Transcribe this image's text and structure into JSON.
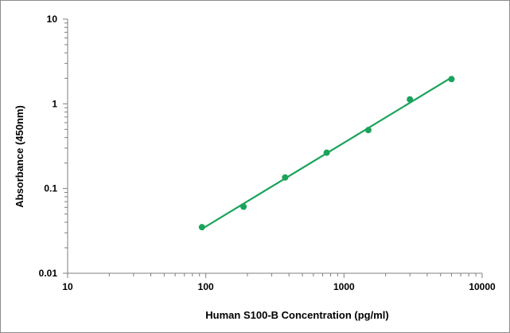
{
  "chart_data": {
    "type": "scatter",
    "title": "",
    "xlabel": "Human S100-B Concentration (pg/ml)",
    "ylabel": "Absorbance (450nm)",
    "x_scale": "log",
    "y_scale": "log",
    "xlim": [
      10,
      10000
    ],
    "ylim": [
      0.01,
      10
    ],
    "x_ticks": [
      "10",
      "100",
      "1000",
      "10000"
    ],
    "y_ticks": [
      "0.01",
      "0.1",
      "1",
      "10"
    ],
    "grid": false,
    "legend": "none",
    "series": [
      {
        "color": "#1aa35a",
        "points": [
          {
            "x": 93.75,
            "y": 0.035
          },
          {
            "x": 187.5,
            "y": 0.061
          },
          {
            "x": 375,
            "y": 0.135
          },
          {
            "x": 750,
            "y": 0.265
          },
          {
            "x": 1500,
            "y": 0.49
          },
          {
            "x": 3000,
            "y": 1.13
          },
          {
            "x": 6000,
            "y": 1.96
          }
        ],
        "trendline": {
          "type": "power",
          "x_range": [
            93.75,
            6000
          ]
        }
      }
    ]
  }
}
